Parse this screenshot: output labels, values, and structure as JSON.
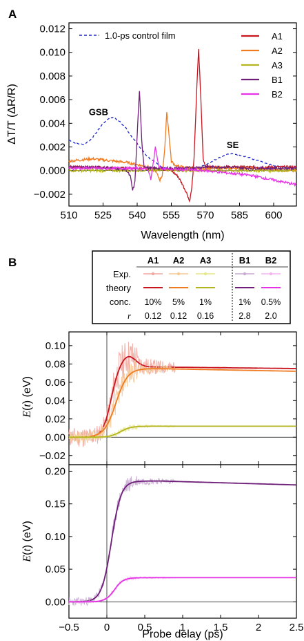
{
  "colors": {
    "A1": "#c8141e",
    "A2": "#f07a1e",
    "A3": "#b4b41e",
    "B1": "#6e1e78",
    "B2": "#e632e6",
    "control": "#1e28c8",
    "A1_exp": "#f0a8a0",
    "A2_exp": "#f5c896",
    "A3_exp": "#e6e68c",
    "B1_exp": "#c8aad2",
    "B2_exp": "#f5b4f0"
  },
  "chart_data": [
    {
      "type": "line",
      "panel": "A",
      "title": "",
      "xlabel": "Wavelength (nm)",
      "ylabel": "ΔT/T (ΔR/R)",
      "xlim": [
        510,
        610
      ],
      "ylim": [
        -0.003,
        0.0125
      ],
      "xticks": [
        510,
        525,
        540,
        555,
        570,
        585,
        600
      ],
      "yticks": [
        -0.002,
        0.0,
        0.002,
        0.004,
        0.006,
        0.008,
        0.01,
        0.012
      ],
      "ytick_labels": [
        "−0.002",
        "0.000",
        "0.002",
        "0.004",
        "0.006",
        "0.008",
        "0.010",
        "0.012"
      ],
      "legend": {
        "placement": "top-right",
        "entries": [
          "A1",
          "A2",
          "A3",
          "B1",
          "B2"
        ]
      },
      "control_legend": "1.0-ps control film",
      "annotations": [
        {
          "text": "GSB",
          "x": 523,
          "y": 0.0047
        },
        {
          "text": "SE",
          "x": 582,
          "y": 0.0019
        }
      ],
      "series": [
        {
          "name": "1.0-ps control film",
          "style": "dashed",
          "x": [
            510,
            513,
            516,
            519,
            522,
            525,
            528,
            530,
            532,
            535,
            538,
            541,
            544,
            547,
            550,
            553,
            556,
            559,
            562,
            565,
            568,
            571,
            574,
            577,
            580,
            583,
            586,
            589,
            592,
            595,
            598,
            601,
            604,
            607,
            610
          ],
          "y": [
            0.0026,
            0.0023,
            0.0022,
            0.0025,
            0.0032,
            0.004,
            0.0045,
            0.0045,
            0.0042,
            0.0036,
            0.0028,
            0.002,
            0.0013,
            0.0008,
            0.0004,
            0.0002,
            0.0001,
            0.0001,
            0.0001,
            0.0002,
            0.0003,
            0.0006,
            0.0009,
            0.0012,
            0.0014,
            0.0014,
            0.0013,
            0.0011,
            0.0009,
            0.0007,
            0.0005,
            0.0004,
            0.0003,
            0.0002,
            0.0002
          ]
        },
        {
          "name": "A1",
          "x": [
            510,
            520,
            530,
            540,
            550,
            555,
            558,
            560,
            562,
            563,
            564,
            565,
            566,
            567,
            568,
            569,
            570,
            572,
            575,
            580,
            590,
            600,
            610
          ],
          "y": [
            0.0003,
            0.0003,
            0.0002,
            0.0002,
            0.0002,
            0.0,
            -0.0005,
            -0.0012,
            -0.002,
            -0.0026,
            -0.0015,
            0.001,
            0.006,
            0.0103,
            0.006,
            0.001,
            0.0004,
            0.0003,
            0.0003,
            0.0003,
            0.0003,
            0.0003,
            0.0003
          ]
        },
        {
          "name": "A2",
          "x": [
            510,
            515,
            520,
            525,
            530,
            535,
            540,
            545,
            548,
            550,
            551,
            552,
            553,
            554,
            555,
            557,
            560,
            565,
            570,
            580,
            590,
            600,
            610
          ],
          "y": [
            0.0008,
            0.0009,
            0.001,
            0.0009,
            0.0008,
            0.0007,
            0.0005,
            0.0003,
            0.0,
            -0.0008,
            -0.0004,
            0.0015,
            0.005,
            0.003,
            0.0008,
            0.0004,
            0.0003,
            0.0002,
            0.0002,
            0.0002,
            0.0002,
            0.0001,
            0.0
          ]
        },
        {
          "name": "A3",
          "x": [
            510,
            520,
            530,
            540,
            550,
            560,
            570,
            580,
            590,
            600,
            610
          ],
          "y": [
            0.0,
            0.0,
            0.0,
            0.0,
            0.0001,
            0.0,
            0.0,
            0.0,
            0.0,
            0.0,
            0.0
          ]
        },
        {
          "name": "B1",
          "x": [
            510,
            520,
            530,
            535,
            537,
            538,
            539,
            540,
            541,
            542,
            543,
            545,
            550,
            560,
            570,
            580,
            590,
            600,
            610
          ],
          "y": [
            0.0003,
            0.0003,
            0.0002,
            0.0001,
            -0.0005,
            -0.0017,
            -0.001,
            0.003,
            0.0068,
            0.0025,
            0.0004,
            0.0002,
            0.0002,
            0.0002,
            0.0003,
            0.0003,
            0.0002,
            0.0002,
            0.0002
          ]
        },
        {
          "name": "B2",
          "x": [
            510,
            520,
            530,
            540,
            543,
            545,
            546,
            547,
            548,
            549,
            550,
            555,
            560,
            570,
            580,
            590,
            595,
            600,
            605,
            610
          ],
          "y": [
            0.0002,
            0.0002,
            0.0002,
            0.0002,
            0.0002,
            0.0,
            -0.0007,
            0.0005,
            0.002,
            0.0008,
            0.0002,
            0.0001,
            0.0001,
            0.0,
            -0.0002,
            -0.0004,
            -0.0006,
            -0.0008,
            -0.001,
            -0.0012
          ]
        }
      ]
    },
    {
      "type": "table",
      "panel": "B",
      "columns": [
        "A1",
        "A2",
        "A3",
        "B1",
        "B2"
      ],
      "rows": [
        {
          "label": "Exp.",
          "kind": "exp-legend"
        },
        {
          "label": "theory",
          "kind": "theory-legend"
        },
        {
          "label": "conc.",
          "values": [
            "10%",
            "5%",
            "1%",
            "1%",
            "0.5%"
          ]
        },
        {
          "label": "r",
          "values": [
            "0.12",
            "0.12",
            "0.16",
            "2.8",
            "2.0"
          ]
        }
      ]
    },
    {
      "type": "line",
      "panel": "B-top",
      "ylabel": "E(t) (eV)",
      "xlim": [
        -0.5,
        2.5
      ],
      "ylim": [
        -0.03,
        0.115
      ],
      "yticks": [
        -0.02,
        0.0,
        0.02,
        0.04,
        0.06,
        0.08,
        0.1
      ],
      "ytick_labels": [
        "−0.02",
        "0.00",
        "0.02",
        "0.04",
        "0.06",
        "0.08",
        "0.10"
      ],
      "series": [
        {
          "name": "A1",
          "plateau": 0.077,
          "peak": 0.089,
          "peak_t": 0.28,
          "rise": 0.12,
          "t0": 0.05,
          "final": 0.075,
          "noise": 0.02
        },
        {
          "name": "A2",
          "plateau": 0.075,
          "peak": 0.075,
          "peak_t": 0.6,
          "rise": 0.17,
          "t0": 0.12,
          "final": 0.072,
          "noise": 0.012
        },
        {
          "name": "A3",
          "plateau": 0.012,
          "peak": 0.012,
          "peak_t": 0.6,
          "rise": 0.15,
          "t0": 0.18,
          "final": 0.012,
          "noise": 0.003
        }
      ]
    },
    {
      "type": "line",
      "panel": "B-bottom",
      "ylabel": "E(t) (eV)",
      "xlabel": "Probe delay (ps)",
      "xlim": [
        -0.5,
        2.5
      ],
      "ylim": [
        -0.025,
        0.21
      ],
      "xticks": [
        -0.5,
        0,
        0.5,
        1,
        1.5,
        2,
        2.5
      ],
      "xtick_labels": [
        "−0.5",
        "0",
        "0.5",
        "1",
        "1.5",
        "2",
        "2.5"
      ],
      "yticks": [
        0.0,
        0.05,
        0.1,
        0.15,
        0.2
      ],
      "ytick_labels": [
        "0.00",
        "0.05",
        "0.10",
        "0.15",
        "0.20"
      ],
      "series": [
        {
          "name": "B1",
          "plateau": 0.185,
          "peak": 0.185,
          "peak_t": 0.7,
          "rise": 0.14,
          "t0": 0.06,
          "final": 0.179,
          "noise": 0.012
        },
        {
          "name": "B2",
          "plateau": 0.037,
          "peak": 0.037,
          "peak_t": 0.6,
          "rise": 0.13,
          "t0": 0.1,
          "final": 0.037,
          "noise": 0.003
        }
      ]
    }
  ],
  "panels": {
    "a_letter": "A",
    "b_letter": "B"
  }
}
